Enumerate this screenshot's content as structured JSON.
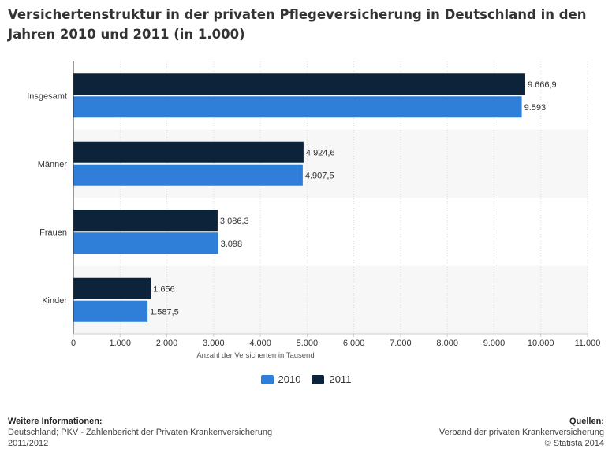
{
  "title": "Versichertenstruktur in der privaten Pflegeversicherung in Deutschland in den Jahren 2010 und 2011 (in 1.000)",
  "colors": {
    "series_2010": "#2f7ed8",
    "series_2011": "#0d233a",
    "band_alt": "#f7f7f7",
    "axis": "#333333"
  },
  "chart_data": {
    "type": "bar",
    "orientation": "horizontal",
    "categories": [
      "Insgesamt",
      "Männer",
      "Frauen",
      "Kinder"
    ],
    "series": [
      {
        "name": "2011",
        "values": [
          9666.9,
          4924.6,
          3086.3,
          1656
        ],
        "labels": [
          "9.666,9",
          "4.924,6",
          "3.086,3",
          "1.656"
        ]
      },
      {
        "name": "2010",
        "values": [
          9593,
          4907.5,
          3098,
          1587.5
        ],
        "labels": [
          "9.593",
          "4.907,5",
          "3.098",
          "1.587,5"
        ]
      }
    ],
    "xlabel": "Anzahl der Versicherten in Tausend",
    "xlim": [
      0,
      11000
    ],
    "xticks": [
      0,
      1000,
      2000,
      3000,
      4000,
      5000,
      6000,
      7000,
      8000,
      9000,
      10000,
      11000
    ],
    "xtick_labels": [
      "0",
      "1.000",
      "2.000",
      "3.000",
      "4.000",
      "5.000",
      "6.000",
      "7.000",
      "8.000",
      "9.000",
      "10.000",
      "11.000"
    ],
    "grid": "vertical",
    "legend": "bottom-center"
  },
  "legend": [
    {
      "label": "2010",
      "color": "#2f7ed8"
    },
    {
      "label": "2011",
      "color": "#0d233a"
    }
  ],
  "footer": {
    "left_heading": "Weitere Informationen:",
    "left_line1": "Deutschland; PKV - Zahlenbericht der Privaten Krankenversicherung",
    "left_line2": "2011/2012",
    "right_heading": "Quellen:",
    "right_line1": "Verband der privaten Krankenversicherung",
    "right_line2": "© Statista 2014"
  }
}
